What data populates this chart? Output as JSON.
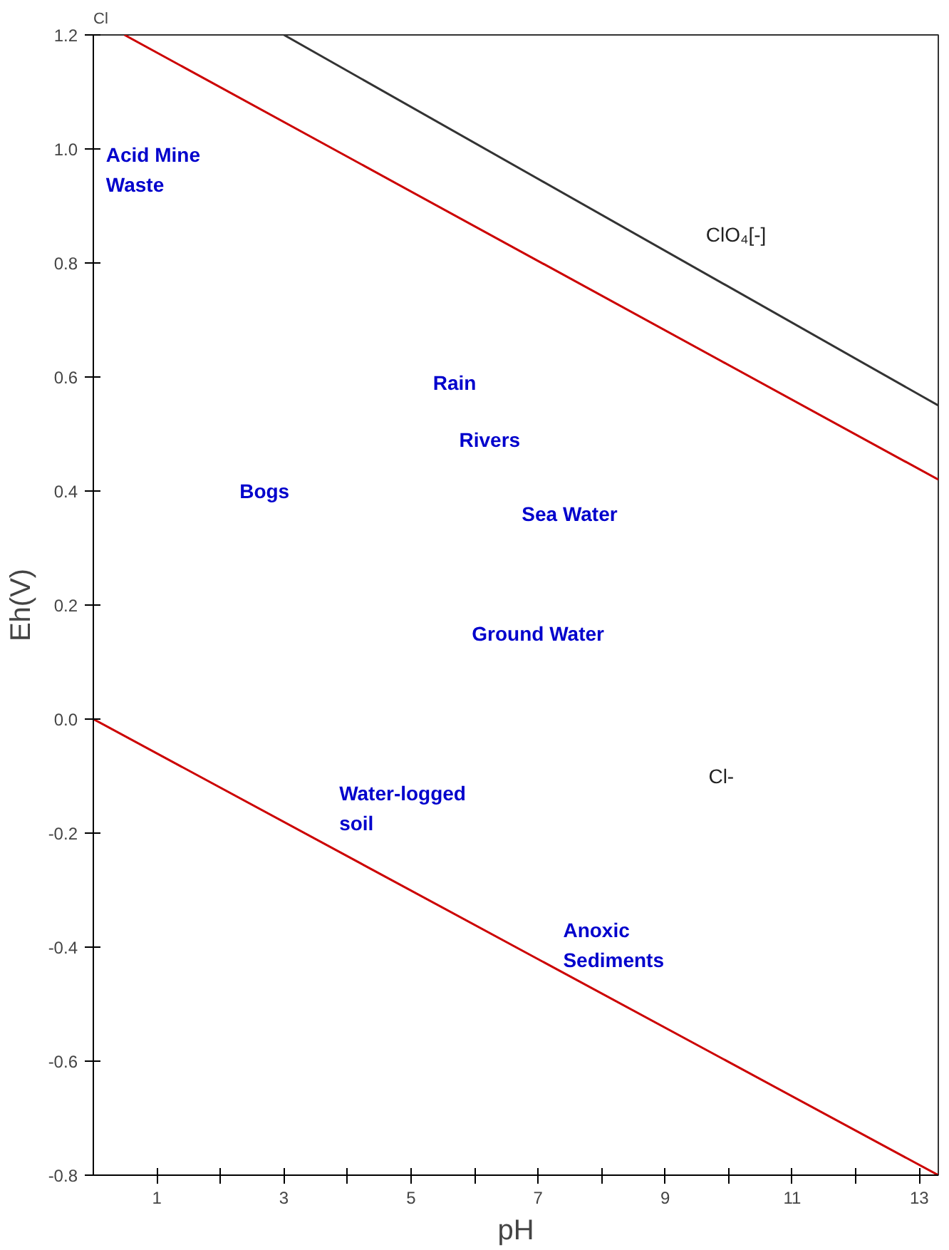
{
  "chart_data": {
    "type": "line",
    "title": "Cl",
    "xlabel": "pH",
    "ylabel": "Eh(V)",
    "xlim": [
      0,
      13.3
    ],
    "ylim": [
      -0.8,
      1.2
    ],
    "xticks": [
      1,
      {
        "value": 2,
        "label": null
      },
      3,
      {
        "value": 4,
        "label": null
      },
      5,
      {
        "value": 6,
        "label": null
      },
      7,
      {
        "value": 8,
        "label": null
      },
      9,
      {
        "value": 10,
        "label": null
      },
      11,
      {
        "value": 12,
        "label": null
      },
      13
    ],
    "yticks": [
      -0.8,
      -0.6,
      -0.4,
      -0.2,
      {
        "value": 0,
        "label": "0.0"
      },
      0.2,
      0.4,
      0.6,
      0.8,
      {
        "value": 1,
        "label": "1.0"
      },
      1.2
    ],
    "grid": false,
    "marker": "none",
    "line_style": "solid",
    "series": [
      {
        "color": "#cc0000",
        "x": [
          0.49,
          13.3
        ],
        "values": [
          1.2,
          0.42
        ]
      },
      {
        "color": "#cc0000",
        "x": [
          0,
          13.3
        ],
        "values": [
          0,
          -0.8
        ]
      },
      {
        "color": "#333333",
        "x": [
          3,
          13.3
        ],
        "values": [
          1.2,
          0.55
        ]
      }
    ],
    "annotations": [
      "ClO₄[-]",
      "Cl-",
      "Acid Mine\nWaste",
      "Rain",
      "Rivers",
      "Bogs",
      "Sea Water",
      "Ground Water",
      "Water-logged\nsoil",
      "Anoxic\nSediments"
    ]
  }
}
